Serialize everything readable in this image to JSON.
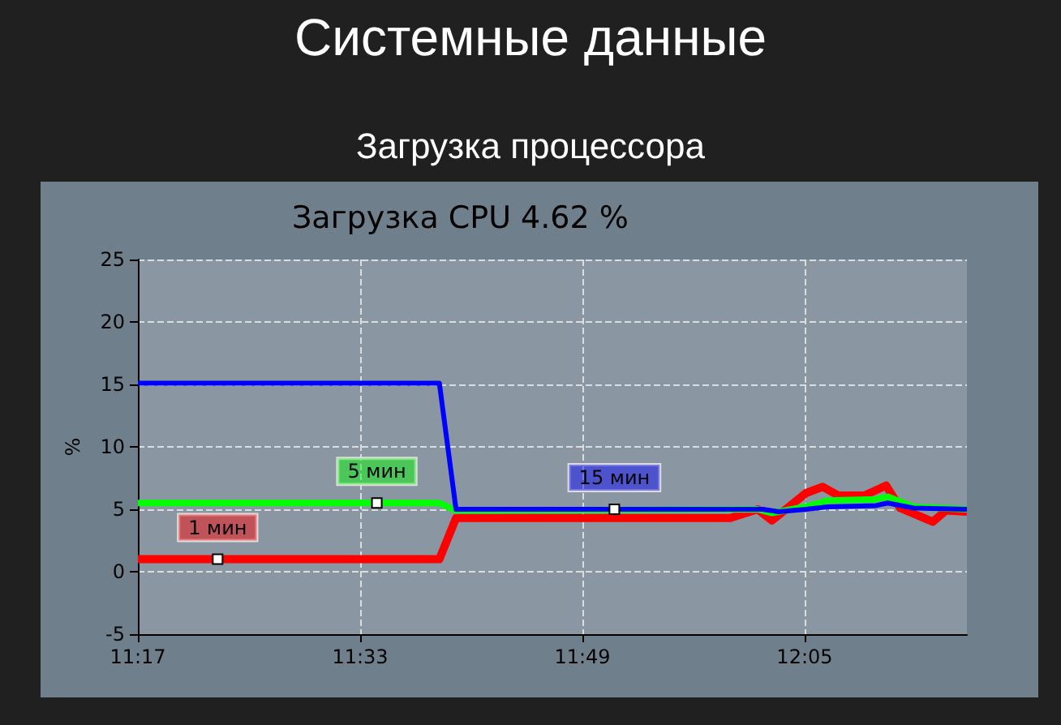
{
  "chart_data": {
    "type": "line",
    "title": "Системные данные",
    "subtitle": "Загрузка процессора",
    "annotations": [
      "Загрузка CPU 4.62 %"
    ],
    "ylabel": "%",
    "xlim": [
      11.2833,
      12.278
    ],
    "xticks": [
      {
        "value": 11.2833,
        "label": "11:17"
      },
      {
        "value": 11.55,
        "label": "11:33"
      },
      {
        "value": 11.8167,
        "label": "11:49"
      },
      {
        "value": 12.0833,
        "label": "12:05"
      }
    ],
    "ylim": [
      -5,
      25
    ],
    "yticks": [
      -5,
      0,
      5,
      10,
      15,
      20,
      25
    ],
    "grid": true,
    "marker": "none",
    "line_style": "solid",
    "legend": false,
    "series": [
      {
        "name": "1 мин",
        "color": "#ff0000",
        "x": [
          11.2833,
          11.379,
          11.645,
          11.665,
          11.994,
          12.027,
          12.044,
          12.085,
          12.105,
          12.124,
          12.155,
          12.181,
          12.198,
          12.237,
          12.253,
          12.278
        ],
        "values": [
          1.0,
          1.0,
          1.0,
          4.3,
          4.3,
          5.0,
          4.1,
          6.3,
          6.8,
          6.1,
          6.1,
          6.9,
          5.1,
          4.0,
          4.9,
          4.8
        ]
      },
      {
        "name": "5 мин",
        "color": "#00ff00",
        "x": [
          11.2833,
          11.57,
          11.645,
          11.665,
          12.027,
          12.044,
          12.091,
          12.111,
          12.169,
          12.183,
          12.214,
          12.278
        ],
        "values": [
          5.5,
          5.5,
          5.5,
          4.9,
          5.0,
          4.7,
          5.3,
          5.7,
          5.8,
          6.0,
          5.2,
          5.0
        ]
      },
      {
        "name": "15 мин",
        "color": "#0000ff",
        "x": [
          11.2833,
          11.645,
          11.665,
          11.855,
          12.033,
          12.052,
          12.085,
          12.111,
          12.169,
          12.183,
          12.214,
          12.278
        ],
        "values": [
          15.1,
          15.1,
          5.0,
          5.0,
          5.0,
          4.8,
          5.0,
          5.2,
          5.3,
          5.5,
          5.1,
          5.0
        ]
      }
    ]
  }
}
